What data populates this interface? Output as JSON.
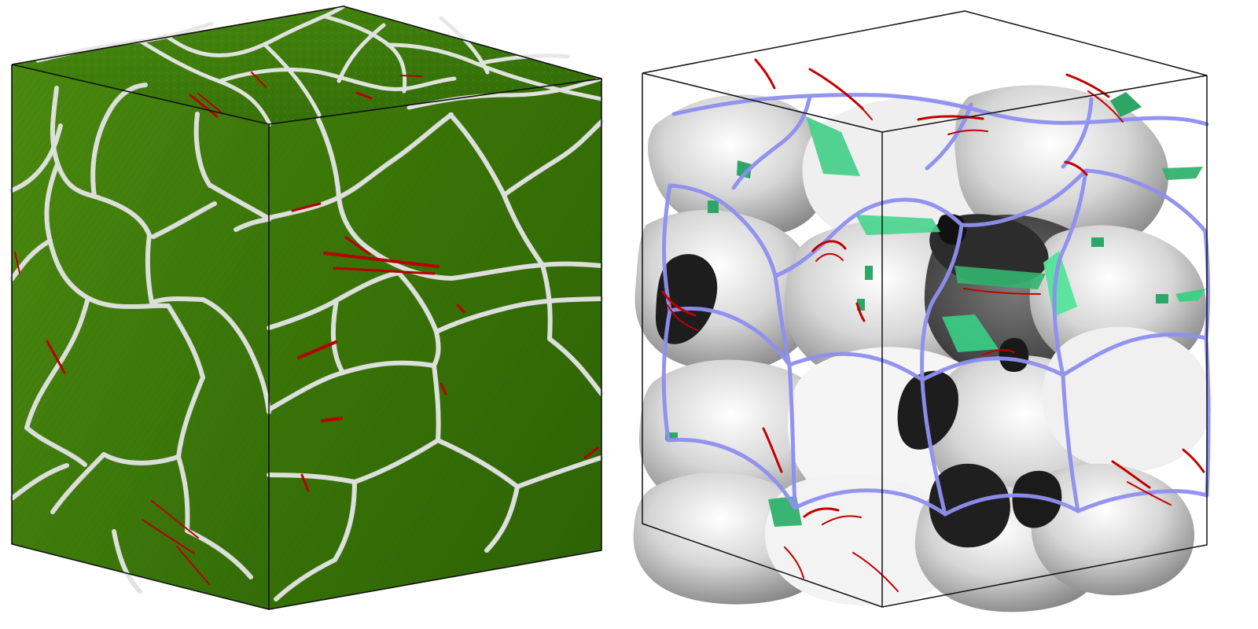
{
  "image": {
    "kind": "two-panel scientific render",
    "panels": [
      {
        "name": "atomistic-polycrystal-cube",
        "background": "#ffffff",
        "colors": {
          "grain": "#3f7f08",
          "grain_dark": "#2f6306",
          "grain_light": "#4d8d10",
          "grain_boundary_atoms": "#e7e7e7",
          "stacking_fault": "#b70000",
          "outline": "#111111"
        }
      },
      {
        "name": "defect-surface-mesh-cube",
        "background": "#ffffff",
        "colors": {
          "surface_light": "#f1f1f1",
          "surface_mid": "#a9a9a9",
          "surface_dark": "#3f3f3f",
          "boundary_lines": "#8d8ff0",
          "defect_green": "#3dd08a",
          "dislocation_red": "#c00000",
          "outline": "#111111"
        }
      }
    ]
  }
}
